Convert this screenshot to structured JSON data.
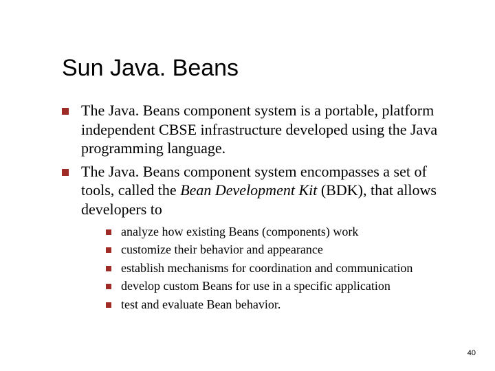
{
  "title": "Sun Java. Beans",
  "bullets": [
    {
      "text": "The Java. Beans component system is a portable, platform independent CBSE infrastructure developed using the Java programming language."
    },
    {
      "text_pre": "The Java. Beans component system encompasses a set of tools, called the ",
      "text_italic": "Bean Development Kit",
      "text_post": " (BDK), that allows developers to"
    }
  ],
  "sub_bullets": [
    " analyze how existing Beans (components) work",
    " customize their behavior and appearance",
    " establish mechanisms for coordination and communication",
    " develop custom Beans for use in a specific application",
    " test and evaluate Bean behavior."
  ],
  "page_number": "40",
  "colors": {
    "bullet_square": "#9e2b25",
    "background": "#ffffff",
    "text": "#000000"
  },
  "fonts": {
    "title_family": "Arial",
    "title_size_pt": 26,
    "body_family": "Times New Roman",
    "body_size_pt": 17,
    "sub_size_pt": 14
  }
}
